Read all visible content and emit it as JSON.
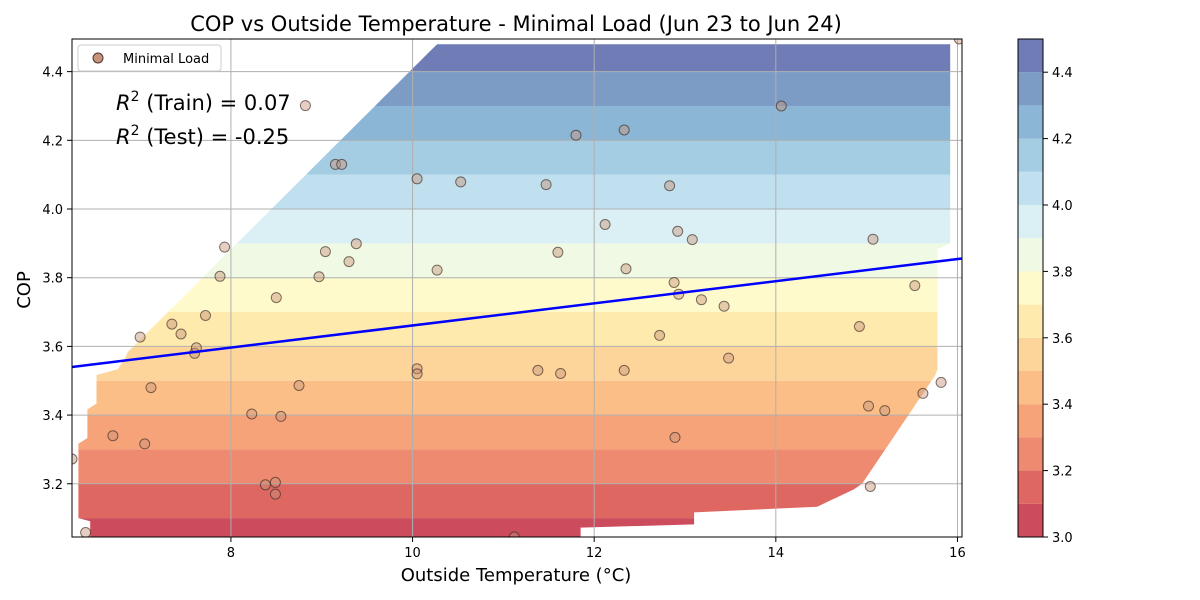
{
  "chart_data": {
    "type": "scatter",
    "title": "COP vs Outside Temperature - Minimal Load (Jun 23 to Jun 24)",
    "xlabel": "Outside Temperature (°C)",
    "ylabel": "COP",
    "xlim": [
      6.25,
      16.05
    ],
    "ylim": [
      3.045,
      4.495
    ],
    "x_ticks": [
      8,
      10,
      12,
      14,
      16
    ],
    "y_ticks": [
      3.2,
      3.4,
      3.6,
      3.8,
      4.0,
      4.2,
      4.4
    ],
    "grid": true,
    "legend": {
      "position": "top-left",
      "entries": [
        "Minimal Load"
      ]
    },
    "series": [
      {
        "name": "Minimal Load",
        "marker_color": "#c8937a",
        "x": [
          6.25,
          6.4,
          6.7,
          7.0,
          7.05,
          7.12,
          7.35,
          7.45,
          7.6,
          7.62,
          7.72,
          7.88,
          7.93,
          8.23,
          8.38,
          8.49,
          8.49,
          8.5,
          8.55,
          8.75,
          8.82,
          8.97,
          9.04,
          9.15,
          9.22,
          9.3,
          9.38,
          10.05,
          10.05,
          10.05,
          10.27,
          10.53,
          11.12,
          11.38,
          11.47,
          11.6,
          11.63,
          11.8,
          12.12,
          12.33,
          12.33,
          12.35,
          12.72,
          12.83,
          12.88,
          12.89,
          12.92,
          12.93,
          13.08,
          13.18,
          13.43,
          13.48,
          14.06,
          14.92,
          15.02,
          15.04,
          15.07,
          15.2,
          15.53,
          15.62,
          15.82,
          16.02
        ],
        "y": [
          3.272,
          3.058,
          3.34,
          3.627,
          3.316,
          3.48,
          3.665,
          3.636,
          3.58,
          3.596,
          3.69,
          3.804,
          3.889,
          3.403,
          3.197,
          3.204,
          3.17,
          3.742,
          3.396,
          3.486,
          4.301,
          3.803,
          3.876,
          4.13,
          4.13,
          3.847,
          3.899,
          4.088,
          3.535,
          3.52,
          3.822,
          4.079,
          3.045,
          3.53,
          4.071,
          3.874,
          3.521,
          4.215,
          3.955,
          4.23,
          3.53,
          3.826,
          3.632,
          4.068,
          3.786,
          3.335,
          3.935,
          3.752,
          3.911,
          3.736,
          3.717,
          3.566,
          4.3,
          3.658,
          3.426,
          3.192,
          3.912,
          3.413,
          3.777,
          3.463,
          3.495,
          4.495
        ]
      }
    ],
    "regression": {
      "name": "fit line",
      "x": [
        6.25,
        16.05
      ],
      "y": [
        3.54,
        3.856
      ],
      "color": "#0000ff"
    },
    "annotations": [
      {
        "prefix": "R",
        "sup": "2",
        "suffix": " (Train) = 0.07"
      },
      {
        "prefix": "R",
        "sup": "2",
        "suffix": " (Test) = -0.25"
      }
    ],
    "contour": {
      "colormap": "RdYlBu",
      "levels": [
        3.0,
        3.1,
        3.2,
        3.3,
        3.4,
        3.5,
        3.6,
        3.7,
        3.8,
        3.9,
        4.0,
        4.1,
        4.2,
        4.3,
        4.4,
        4.5
      ],
      "colors": [
        "#c6374a",
        "#da5650",
        "#ec7d60",
        "#f6996b",
        "#fbb77a",
        "#fdd090",
        "#fee8a4",
        "#fefac6",
        "#eef8e0",
        "#d6eef3",
        "#b9dded",
        "#9ac6e0",
        "#80aed2",
        "#6e91c0",
        "#5f6eae"
      ]
    },
    "colorbar": {
      "range": [
        3.0,
        4.5
      ],
      "ticks": [
        3.0,
        3.2,
        3.4,
        3.6,
        3.8,
        4.0,
        4.2,
        4.4
      ]
    }
  }
}
